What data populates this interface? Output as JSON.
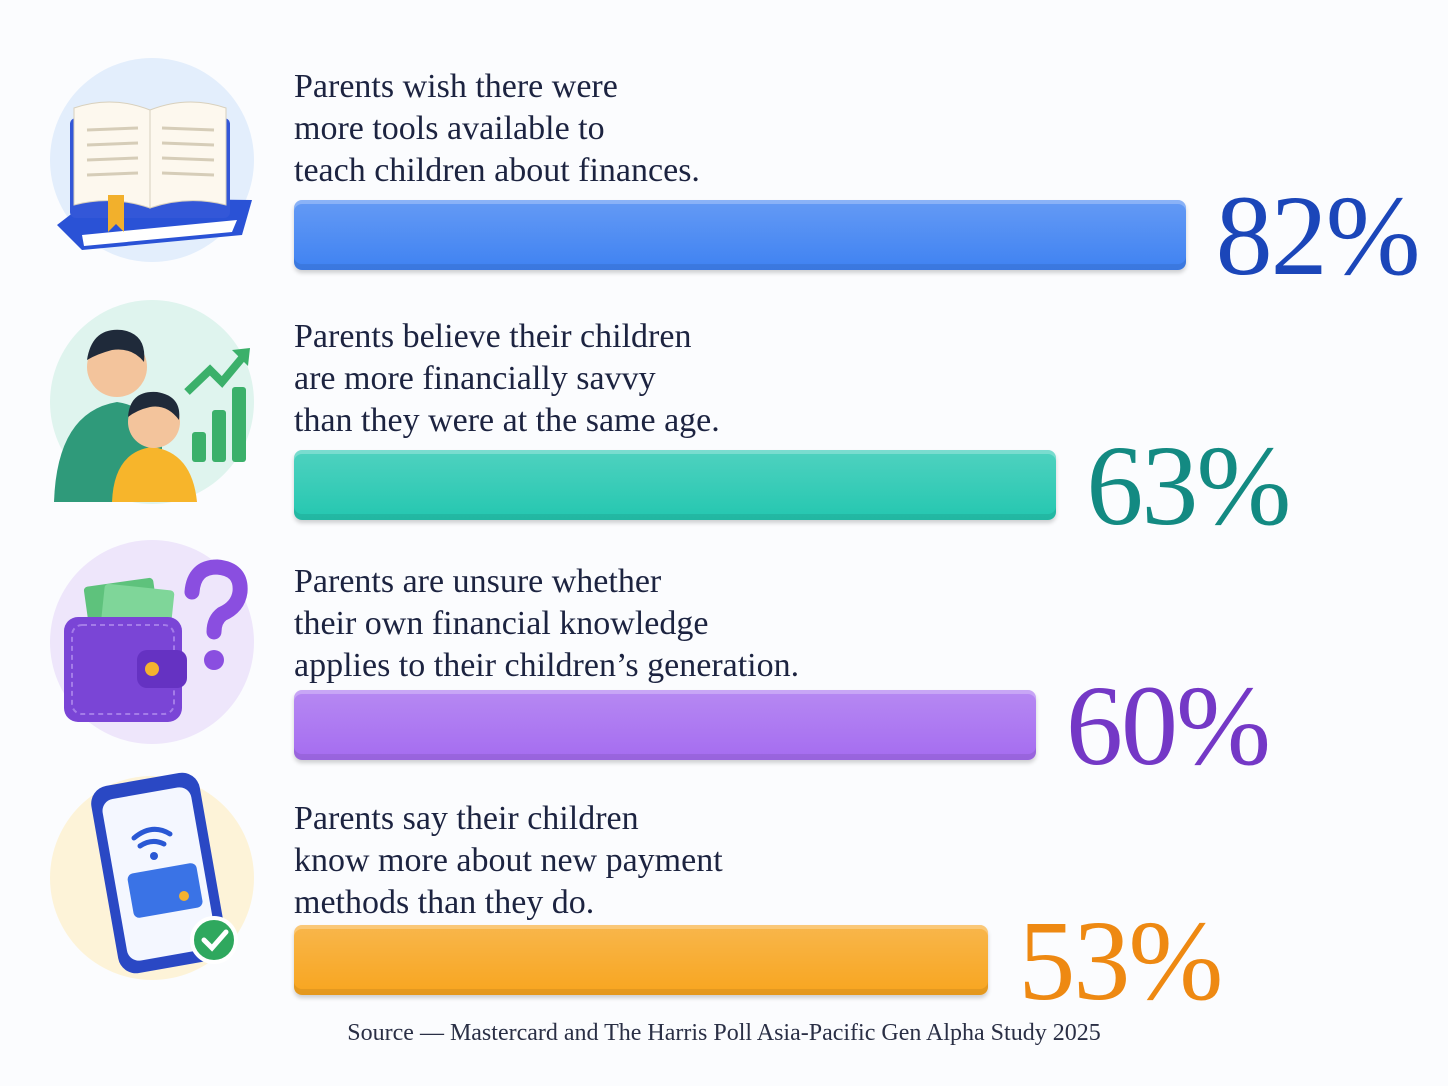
{
  "chart_data": {
    "type": "bar",
    "orientation": "horizontal",
    "categories": [
      "Parents wish there were\nmore tools available to\nteach children about finances.",
      "Parents believe their children\nare more financially savvy\nthan they were at the same age.",
      "Parents are unsure whether\ntheir own financial knowledge\napplies to their children’s generation.",
      "Parents say their children\nknow more about new payment\nmethods than they do."
    ],
    "values": [
      82,
      63,
      60,
      53
    ],
    "value_labels": [
      "82%",
      "63%",
      "60%",
      "53%"
    ],
    "colors": [
      "#3f82f2",
      "#24c7b0",
      "#a56cf0",
      "#f8a51f"
    ],
    "value_label_colors": [
      "#1b46b9",
      "#138a82",
      "#7438c6",
      "#ee8912"
    ],
    "source": "Source — Mastercard and The Harris Poll Asia-Pacific Gen Alpha Study 2025"
  }
}
